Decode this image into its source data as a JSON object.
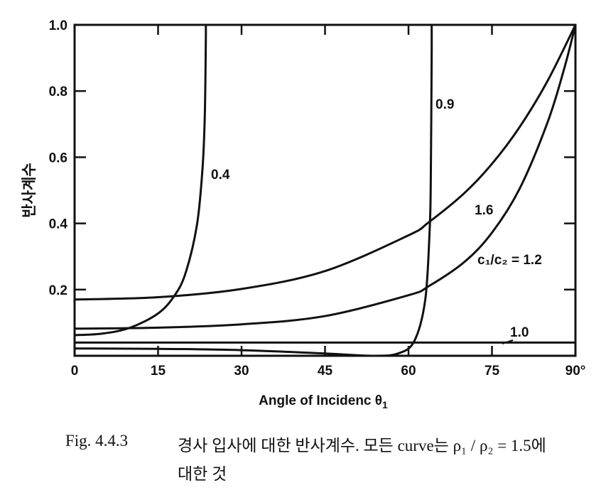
{
  "chart_data": {
    "type": "line",
    "title": "",
    "xlabel": "Angle of Incidenc θ",
    "xlabel_sub": "1",
    "ylabel": "반사계수",
    "xlim": [
      0,
      90
    ],
    "ylim": [
      0,
      1.0
    ],
    "x_ticks": [
      0,
      15,
      30,
      45,
      60,
      75,
      90
    ],
    "x_tick_labels": [
      "0",
      "15",
      "30",
      "45",
      "60",
      "75",
      "90°"
    ],
    "y_ticks": [
      0.2,
      0.4,
      0.6,
      0.8,
      1.0
    ],
    "y_tick_labels": [
      "0.2",
      "0.4",
      "0.6",
      "0.8",
      "1.0"
    ],
    "grid": false,
    "series": [
      {
        "name": "0.4",
        "label": "0.4",
        "x": [
          0,
          5,
          10,
          15,
          18,
          20,
          22,
          23,
          23.4,
          23.58,
          23.58
        ],
        "y": [
          0.0625,
          0.067,
          0.085,
          0.128,
          0.183,
          0.253,
          0.397,
          0.569,
          0.728,
          0.95,
          1.0
        ]
      },
      {
        "name": "0.9",
        "label": "0.9",
        "x": [
          0,
          15,
          30,
          45,
          50,
          54.2,
          58,
          61,
          63,
          63.8,
          64.0,
          64.16,
          64.16
        ],
        "y": [
          0.022,
          0.021,
          0.017,
          0.007,
          0.0024,
          0,
          0.0063,
          0.043,
          0.168,
          0.379,
          0.523,
          0.9,
          1.0
        ]
      },
      {
        "name": "1.0",
        "label": "1.0",
        "x": [
          0,
          90
        ],
        "y": [
          0.04,
          0.04
        ]
      },
      {
        "name": "1.2",
        "label": "c₁/c₂ = 1.2",
        "x": [
          0,
          15,
          30,
          45,
          60,
          63.6,
          70,
          75,
          80,
          85,
          88,
          90
        ],
        "y": [
          0.082,
          0.085,
          0.095,
          0.12,
          0.183,
          0.21,
          0.283,
          0.372,
          0.506,
          0.706,
          0.869,
          1.0
        ]
      },
      {
        "name": "1.6",
        "label": "1.6",
        "x": [
          0,
          15,
          30,
          45,
          60,
          63.6,
          70,
          75,
          80,
          85,
          90
        ],
        "y": [
          0.17,
          0.177,
          0.202,
          0.256,
          0.364,
          0.403,
          0.491,
          0.58,
          0.692,
          0.831,
          1.0
        ]
      }
    ]
  },
  "caption": {
    "figure_number": "Fig. 4.4.3",
    "line1": "경사 입사에 대한 반사계수. 모든 curve는 ρ₁ / ρ₂ = 1.5에",
    "line2": "대한 것"
  }
}
